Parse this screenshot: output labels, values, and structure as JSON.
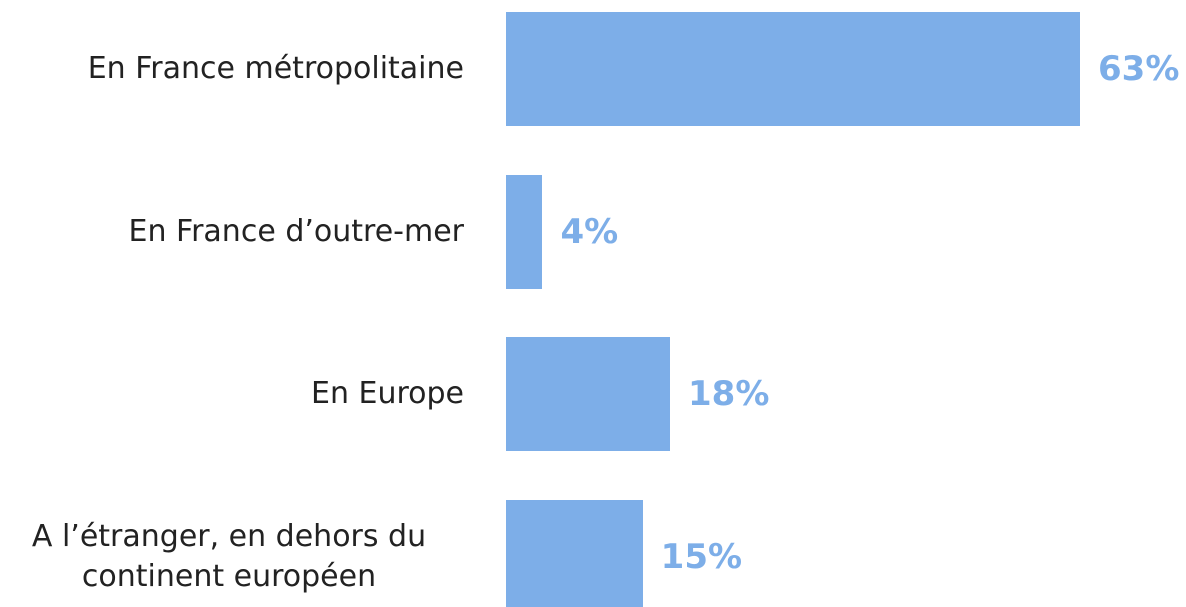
{
  "chart_data": {
    "type": "barh",
    "categories": [
      "En France métropolitaine",
      "En France d’outre-mer",
      "En Europe",
      "A l’étranger, en dehors du continent européen"
    ],
    "values": [
      63,
      4,
      18,
      15
    ],
    "value_labels": [
      "63%",
      "4%",
      "18%",
      "15%"
    ],
    "color": "#7daee8"
  }
}
